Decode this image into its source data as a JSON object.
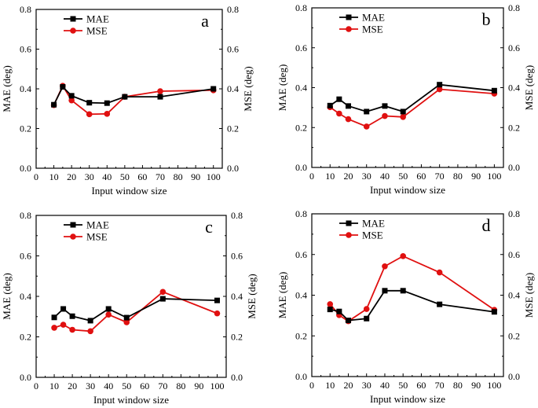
{
  "chart_data": [
    {
      "type": "line",
      "panel_label": "a",
      "x": [
        10,
        15,
        20,
        30,
        40,
        50,
        70,
        100
      ],
      "series": [
        {
          "name": "MAE",
          "color": "#000000",
          "marker": "square",
          "values": [
            0.32,
            0.41,
            0.365,
            0.33,
            0.328,
            0.36,
            0.36,
            0.4
          ]
        },
        {
          "name": "MSE",
          "color": "#e01010",
          "marker": "circle",
          "values": [
            0.318,
            0.415,
            0.342,
            0.272,
            0.274,
            0.36,
            0.388,
            0.393
          ]
        }
      ],
      "xlabel": "Input window size",
      "ylabel_left": "MAE (deg)",
      "ylabel_right": "MSE (deg)",
      "xlim": [
        0,
        105
      ],
      "ylim": [
        0,
        0.8
      ],
      "xticks": [
        "0",
        "10",
        "20",
        "30",
        "40",
        "50",
        "60",
        "70",
        "80",
        "90",
        "100"
      ],
      "yticks": [
        "0.0",
        "0.2",
        "0.4",
        "0.6",
        "0.8"
      ],
      "legend": "top-left"
    },
    {
      "type": "line",
      "panel_label": "b",
      "x": [
        10,
        15,
        20,
        30,
        40,
        50,
        70,
        100
      ],
      "series": [
        {
          "name": "MAE",
          "color": "#000000",
          "marker": "square",
          "values": [
            0.31,
            0.342,
            0.308,
            0.28,
            0.308,
            0.28,
            0.415,
            0.385
          ]
        },
        {
          "name": "MSE",
          "color": "#e01010",
          "marker": "circle",
          "values": [
            0.302,
            0.27,
            0.242,
            0.205,
            0.258,
            0.253,
            0.392,
            0.37
          ]
        }
      ],
      "xlabel": "Input window size",
      "ylabel_left": "MAE (deg)",
      "ylabel_right": "MSE (deg)",
      "xlim": [
        0,
        105
      ],
      "ylim": [
        0,
        0.8
      ],
      "xticks": [
        "0",
        "10",
        "20",
        "30",
        "40",
        "50",
        "60",
        "70",
        "80",
        "90",
        "100"
      ],
      "yticks": [
        "0.0",
        "0.2",
        "0.4",
        "0.6",
        "0.8"
      ],
      "legend": "top-left"
    },
    {
      "type": "line",
      "panel_label": "c",
      "x": [
        10,
        15,
        20,
        30,
        40,
        50,
        70,
        100
      ],
      "series": [
        {
          "name": "MAE",
          "color": "#000000",
          "marker": "square",
          "values": [
            0.296,
            0.338,
            0.302,
            0.28,
            0.338,
            0.295,
            0.388,
            0.38
          ]
        },
        {
          "name": "MSE",
          "color": "#e01010",
          "marker": "circle",
          "values": [
            0.245,
            0.26,
            0.235,
            0.228,
            0.31,
            0.272,
            0.422,
            0.316
          ]
        }
      ],
      "xlabel": "Input window size",
      "ylabel_left": "MAE (deg)",
      "ylabel_right": "MSE (deg)",
      "xlim": [
        0,
        105
      ],
      "ylim": [
        0,
        0.8
      ],
      "xticks": [
        "0",
        "10",
        "20",
        "30",
        "40",
        "50",
        "60",
        "70",
        "80",
        "90",
        "100"
      ],
      "yticks": [
        "0.0",
        "0.2",
        "0.4",
        "0.6",
        "0.8"
      ],
      "legend": "top-left"
    },
    {
      "type": "line",
      "panel_label": "d",
      "x": [
        10,
        15,
        20,
        30,
        40,
        50,
        70,
        100
      ],
      "series": [
        {
          "name": "MAE",
          "color": "#000000",
          "marker": "square",
          "values": [
            0.33,
            0.32,
            0.276,
            0.285,
            0.422,
            0.422,
            0.355,
            0.318
          ]
        },
        {
          "name": "MSE",
          "color": "#e01010",
          "marker": "circle",
          "values": [
            0.356,
            0.302,
            0.272,
            0.332,
            0.542,
            0.592,
            0.512,
            0.328
          ]
        }
      ],
      "xlabel": "Input window size",
      "ylabel_left": "MAE (deg)",
      "ylabel_right": "MSE (deg)",
      "xlim": [
        0,
        105
      ],
      "ylim": [
        0,
        0.8
      ],
      "xticks": [
        "0",
        "10",
        "20",
        "30",
        "40",
        "50",
        "60",
        "70",
        "80",
        "90",
        "100"
      ],
      "yticks": [
        "0.0",
        "0.2",
        "0.4",
        "0.6",
        "0.8"
      ],
      "legend": "top-left"
    }
  ]
}
